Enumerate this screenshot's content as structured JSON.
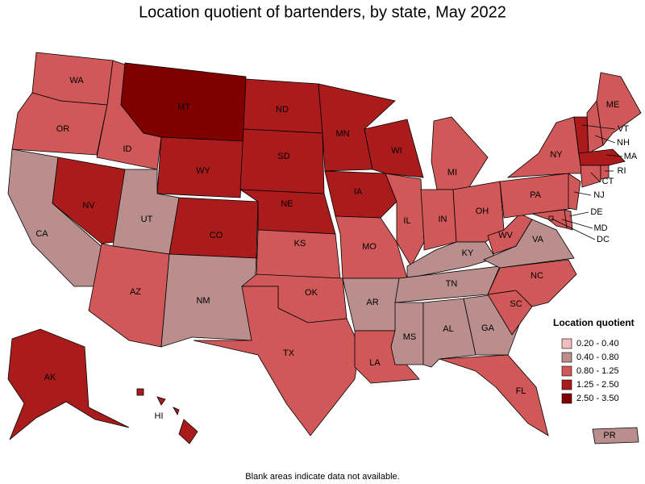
{
  "title": "Location quotient of bartenders, by state, May 2022",
  "legend": {
    "title": "Location quotient",
    "items": [
      {
        "label": "0.20 - 0.40",
        "color": "#f5bcbc"
      },
      {
        "label": "0.40 - 0.80",
        "color": "#bb8e8e"
      },
      {
        "label": "0.80 - 1.25",
        "color": "#d05858"
      },
      {
        "label": "1.25 - 2.50",
        "color": "#aa1c1c"
      },
      {
        "label": "2.50 - 3.50",
        "color": "#800000"
      }
    ]
  },
  "states": [
    {
      "abbr": "WA",
      "class": 2
    },
    {
      "abbr": "OR",
      "class": 2
    },
    {
      "abbr": "CA",
      "class": 1
    },
    {
      "abbr": "NV",
      "class": 3
    },
    {
      "abbr": "ID",
      "class": 2
    },
    {
      "abbr": "MT",
      "class": 4
    },
    {
      "abbr": "WY",
      "class": 3
    },
    {
      "abbr": "UT",
      "class": 1
    },
    {
      "abbr": "AZ",
      "class": 2
    },
    {
      "abbr": "CO",
      "class": 3
    },
    {
      "abbr": "NM",
      "class": 1
    },
    {
      "abbr": "ND",
      "class": 3
    },
    {
      "abbr": "SD",
      "class": 3
    },
    {
      "abbr": "NE",
      "class": 3
    },
    {
      "abbr": "KS",
      "class": 2
    },
    {
      "abbr": "OK",
      "class": 2
    },
    {
      "abbr": "TX",
      "class": 2
    },
    {
      "abbr": "MN",
      "class": 3
    },
    {
      "abbr": "IA",
      "class": 3
    },
    {
      "abbr": "MO",
      "class": 2
    },
    {
      "abbr": "AR",
      "class": 1
    },
    {
      "abbr": "LA",
      "class": 2
    },
    {
      "abbr": "WI",
      "class": 3
    },
    {
      "abbr": "IL",
      "class": 2
    },
    {
      "abbr": "MI",
      "class": 2
    },
    {
      "abbr": "IN",
      "class": 2
    },
    {
      "abbr": "OH",
      "class": 2
    },
    {
      "abbr": "KY",
      "class": 1
    },
    {
      "abbr": "TN",
      "class": 1
    },
    {
      "abbr": "MS",
      "class": 1
    },
    {
      "abbr": "AL",
      "class": 1
    },
    {
      "abbr": "GA",
      "class": 1
    },
    {
      "abbr": "FL",
      "class": 2
    },
    {
      "abbr": "SC",
      "class": 2
    },
    {
      "abbr": "NC",
      "class": 2
    },
    {
      "abbr": "VA",
      "class": 1
    },
    {
      "abbr": "WV",
      "class": 2
    },
    {
      "abbr": "PA",
      "class": 2
    },
    {
      "abbr": "NY",
      "class": 2
    },
    {
      "abbr": "VT",
      "class": 3
    },
    {
      "abbr": "NH",
      "class": 2
    },
    {
      "abbr": "ME",
      "class": 2
    },
    {
      "abbr": "MA",
      "class": 3
    },
    {
      "abbr": "CT",
      "class": 2
    },
    {
      "abbr": "RI",
      "class": 2
    },
    {
      "abbr": "NJ",
      "class": 2
    },
    {
      "abbr": "DE",
      "class": 2
    },
    {
      "abbr": "MD",
      "class": 2
    },
    {
      "abbr": "DC",
      "class": 2
    },
    {
      "abbr": "AK",
      "class": 3
    },
    {
      "abbr": "HI",
      "class": 3
    },
    {
      "abbr": "PR",
      "class": 1
    }
  ],
  "footnote": "Blank areas indicate data not available."
}
